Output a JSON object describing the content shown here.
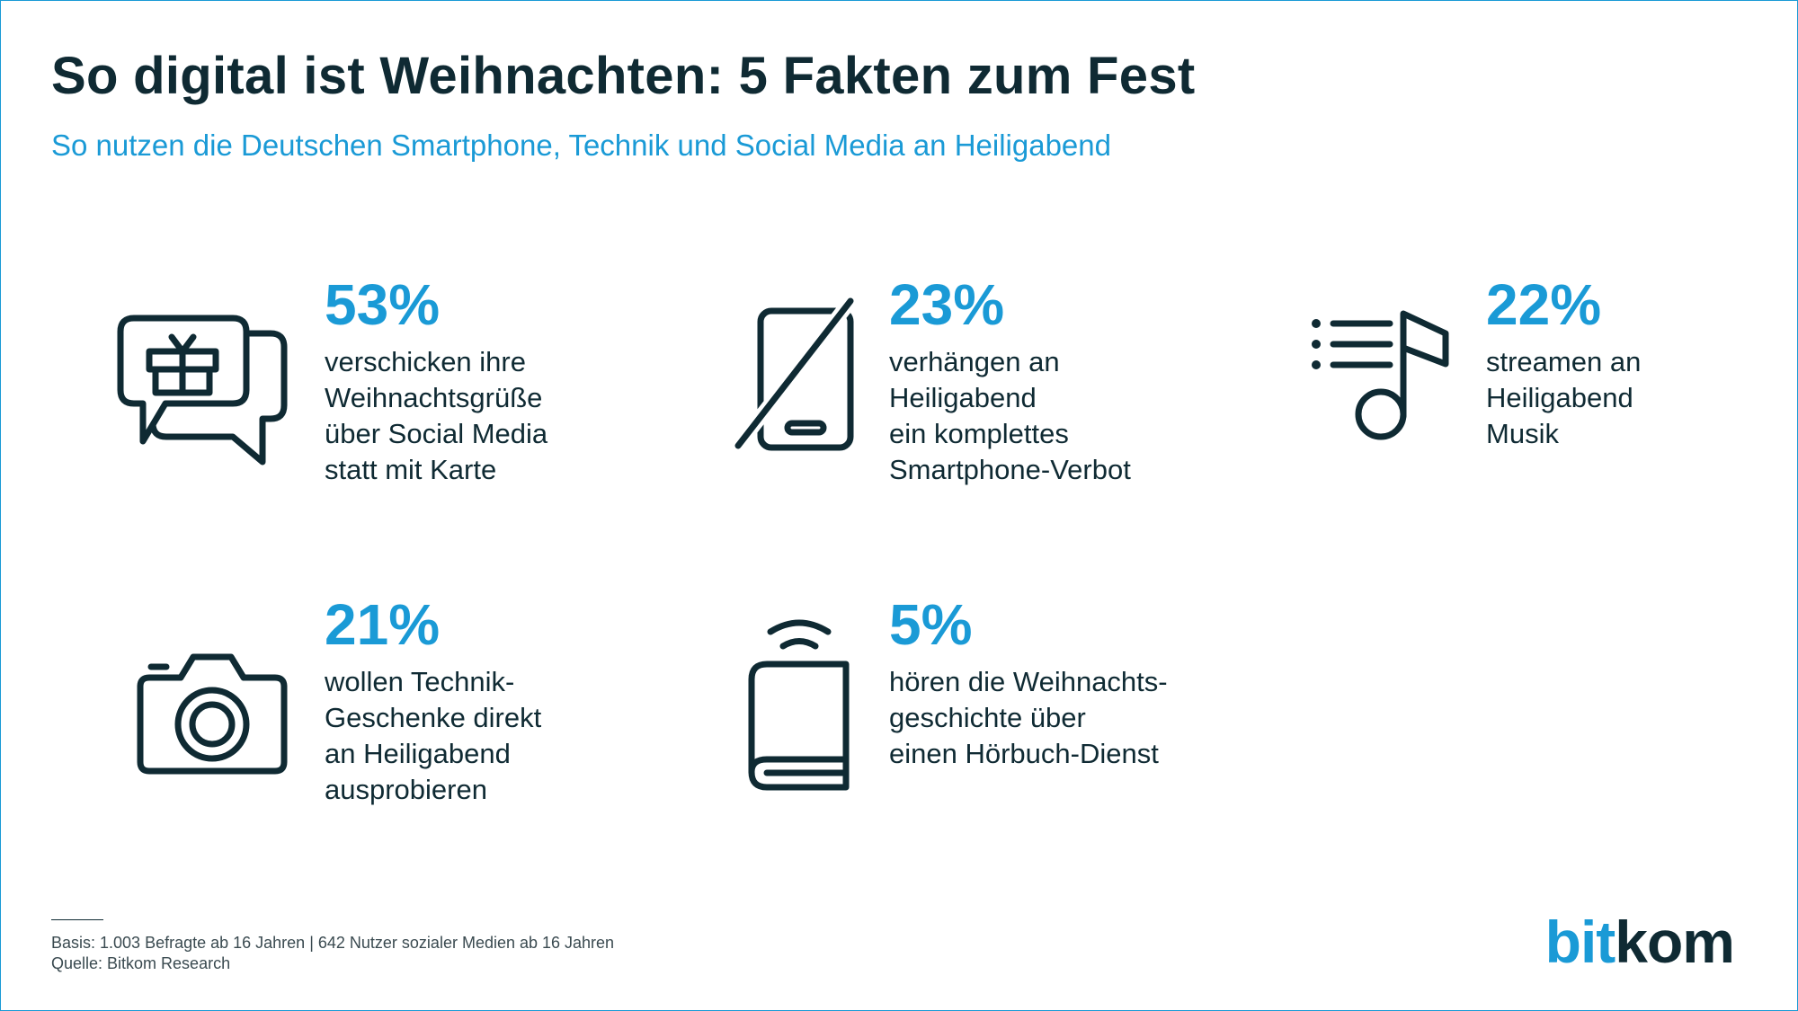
{
  "header": {
    "title": "So digital ist Weihnachten: 5 Fakten zum Fest",
    "subtitle": "So nutzen die Deutschen Smartphone, Technik und Social Media an Heiligabend"
  },
  "facts": [
    {
      "icon": "gift-chat-icon",
      "percent": "53%",
      "lines": [
        "verschicken ihre",
        "Weihnachtsgrüße",
        "über Social Media",
        "statt mit Karte"
      ]
    },
    {
      "icon": "no-smartphone-icon",
      "percent": "23%",
      "lines": [
        "verhängen an",
        "Heiligabend",
        "ein komplettes",
        "Smartphone-Verbot"
      ]
    },
    {
      "icon": "music-playlist-icon",
      "percent": "22%",
      "lines": [
        "streamen an",
        "Heiligabend",
        "Musik"
      ]
    },
    {
      "icon": "camera-icon",
      "percent": "21%",
      "lines": [
        "wollen Technik-",
        "Geschenke direkt",
        "an Heiligabend",
        "ausprobieren"
      ]
    },
    {
      "icon": "audiobook-icon",
      "percent": "5%",
      "lines": [
        "hören die Weihnachts-",
        "geschichte über",
        "einen Hörbuch-Dienst"
      ]
    }
  ],
  "footer": {
    "basis": "Basis: 1.003 Befragte ab 16 Jahren | 642 Nutzer sozialer Medien ab 16 Jahren",
    "source": "Quelle: Bitkom Research"
  },
  "logo": {
    "part1": "bit",
    "part2": "kom"
  },
  "colors": {
    "accent": "#1a9ad6",
    "dark": "#0f2a33"
  }
}
